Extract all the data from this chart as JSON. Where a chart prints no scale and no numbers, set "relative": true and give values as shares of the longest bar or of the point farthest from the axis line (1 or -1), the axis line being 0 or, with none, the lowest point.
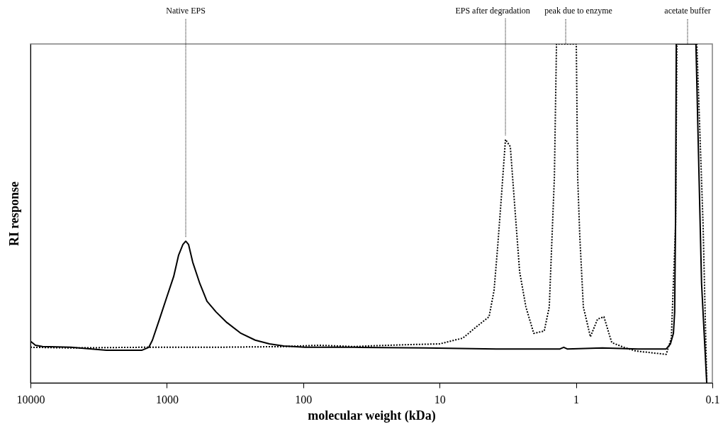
{
  "chart_data": {
    "type": "line",
    "relative": true,
    "xlabel": "molecular weight (kDa)",
    "ylabel": "RI response",
    "log": "x",
    "xlim": [
      10000,
      0.1
    ],
    "xticks": [
      10000,
      1000,
      100,
      10,
      1,
      0.1
    ],
    "marker": "none",
    "series": [
      {
        "color": "#000000",
        "line_style": "solid",
        "x": [
          10000,
          9190,
          8160,
          5050,
          2780,
          1530,
          1355,
          1276,
          1132,
          1005,
          891,
          820,
          763,
          727,
          693,
          646,
          573,
          508,
          435,
          363,
          286,
          225,
          177,
          139,
          97,
          42.1,
          12.7,
          3.85,
          1.31,
          1.23,
          1.16,
          0.64,
          0.352,
          0.218,
          0.203,
          0.193,
          0.189,
          0.186,
          0.184,
          0.132,
          0.127,
          0.12,
          0.11
        ],
        "values": [
          0.123,
          0.111,
          0.107,
          0.105,
          0.096,
          0.096,
          0.105,
          0.126,
          0.188,
          0.251,
          0.314,
          0.377,
          0.408,
          0.418,
          0.408,
          0.356,
          0.293,
          0.241,
          0.209,
          0.178,
          0.146,
          0.126,
          0.115,
          0.109,
          0.105,
          0.105,
          0.103,
          0.1,
          0.1,
          0.105,
          0.1,
          0.103,
          0.1,
          0.1,
          0.115,
          0.146,
          0.209,
          0.502,
          1,
          1,
          0.711,
          0.293,
          0
        ]
      },
      {
        "color": "#000000",
        "line_style": "dotted",
        "x": [
          10000,
          5050,
          1530,
          462,
          139,
          76.7,
          42.1,
          33.2,
          23.2,
          16.2,
          10.0,
          6.76,
          5.32,
          4.34,
          3.99,
          3.76,
          3.54,
          3.29,
          3.03,
          2.79,
          2.59,
          2.33,
          2.04,
          1.71,
          1.57,
          1.51,
          1.44,
          1.39,
          0.995,
          0.972,
          0.938,
          0.883,
          0.784,
          0.695,
          0.624,
          0.547,
          0.447,
          0.364,
          0.218,
          0.2,
          0.186,
          0.182,
          0.13,
          0.117,
          0.11
        ],
        "values": [
          0.105,
          0.103,
          0.105,
          0.105,
          0.107,
          0.111,
          0.107,
          0.109,
          0.111,
          0.113,
          0.115,
          0.132,
          0.167,
          0.195,
          0.272,
          0.397,
          0.538,
          0.718,
          0.697,
          0.502,
          0.328,
          0.224,
          0.146,
          0.153,
          0.224,
          0.397,
          0.607,
          1,
          1,
          0.607,
          0.433,
          0.224,
          0.136,
          0.188,
          0.195,
          0.119,
          0.105,
          0.094,
          0.084,
          0.132,
          0.467,
          1,
          1,
          0.467,
          0.006
        ]
      }
    ],
    "annotations": [
      {
        "text": "Native EPS",
        "x": 727,
        "y": 0.418
      },
      {
        "text": "EPS after degradation",
        "x": 3.29,
        "y": 0.718
      },
      {
        "text": "peak due to enzyme",
        "x": 1.19,
        "y": 1
      },
      {
        "text": "acetate buffer",
        "x": 0.152,
        "y": 1
      }
    ]
  }
}
